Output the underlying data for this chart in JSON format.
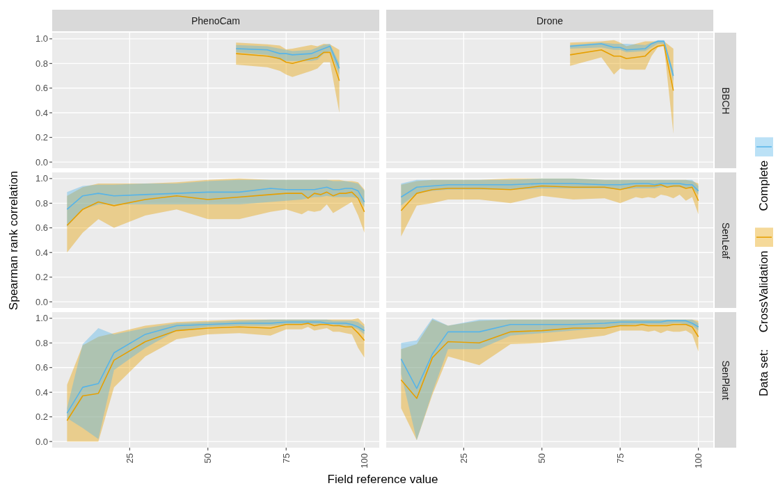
{
  "chart_data": [
    {
      "type": "line",
      "title": "PhenoCam",
      "legend": "right",
      "legend_title": "Data set:",
      "x": [
        59,
        69,
        73,
        75,
        77,
        83,
        85,
        87,
        89,
        92
      ],
      "series": [
        {
          "name": "CrossValidation",
          "color": "#e69f00",
          "values": [
            0.88,
            0.86,
            0.84,
            0.81,
            0.8,
            0.84,
            0.85,
            0.89,
            0.89,
            0.66
          ],
          "lower": [
            0.79,
            0.77,
            0.74,
            0.71,
            0.69,
            0.74,
            0.76,
            0.81,
            0.81,
            0.4
          ],
          "upper": [
            0.97,
            0.955,
            0.945,
            0.915,
            0.92,
            0.95,
            0.94,
            0.96,
            0.955,
            0.91
          ]
        },
        {
          "name": "Complete",
          "color": "#56b4e9",
          "values": [
            0.92,
            0.91,
            0.88,
            0.88,
            0.87,
            0.88,
            0.9,
            0.92,
            0.94,
            0.76
          ],
          "lower": [
            0.89,
            0.87,
            0.83,
            0.82,
            0.82,
            0.82,
            0.83,
            0.88,
            0.9,
            0.71
          ],
          "upper": [
            0.95,
            0.94,
            0.92,
            0.91,
            0.9,
            0.91,
            0.93,
            0.95,
            0.96,
            0.8
          ]
        }
      ],
      "xlim": [
        0.25,
        104.75
      ],
      "ylim": [
        -0.05,
        1.05
      ],
      "xticks": [
        25,
        50,
        75,
        100
      ],
      "yticks": [
        {
          "value": 0,
          "label": "0.0"
        },
        {
          "value": 0.2,
          "label": "0.2"
        },
        {
          "value": 0.4,
          "label": "0.4"
        },
        {
          "value": 0.6,
          "label": "0.6"
        },
        {
          "value": 0.8,
          "label": "0.8"
        },
        {
          "value": 1,
          "label": "1.0"
        }
      ],
      "grid": true,
      "tick_labels": "y"
    },
    {
      "type": "line",
      "title": "Drone",
      "y2label": "BBCH",
      "x": [
        59,
        69,
        73,
        75,
        77,
        83,
        85,
        87,
        89,
        92
      ],
      "series": [
        {
          "color": "#e69f00",
          "values": [
            0.87,
            0.91,
            0.86,
            0.86,
            0.84,
            0.86,
            0.91,
            0.94,
            0.95,
            0.58
          ],
          "lower": [
            0.78,
            0.85,
            0.71,
            0.76,
            0.75,
            0.75,
            0.86,
            0.93,
            0.94,
            0.23
          ],
          "upper": [
            0.97,
            0.98,
            0.99,
            0.97,
            0.94,
            0.98,
            0.98,
            0.98,
            0.98,
            0.92
          ]
        },
        {
          "color": "#56b4e9",
          "values": [
            0.94,
            0.96,
            0.93,
            0.93,
            0.91,
            0.92,
            0.96,
            0.98,
            0.98,
            0.7
          ],
          "lower": [
            0.92,
            0.93,
            0.91,
            0.91,
            0.89,
            0.9,
            0.93,
            0.96,
            0.96,
            0.66
          ],
          "upper": [
            0.95,
            0.97,
            0.96,
            0.96,
            0.96,
            0.95,
            0.97,
            0.99,
            0.99,
            0.74
          ]
        }
      ],
      "xlim": [
        0.25,
        104.75
      ],
      "ylim": [
        -0.05,
        1.05
      ],
      "xticks": [
        25,
        50,
        75,
        100
      ],
      "yticks": [
        0,
        0.2,
        0.4,
        0.6,
        0.8,
        1
      ],
      "grid": true,
      "tick_labels": false
    },
    {
      "type": "line",
      "ylabel": "Spearman rank correlation",
      "x": [
        5,
        10,
        15,
        20,
        30,
        40,
        50,
        60,
        70,
        75,
        80,
        82,
        84,
        86,
        88,
        90,
        92,
        94,
        96,
        98,
        100
      ],
      "series": [
        {
          "color": "#e69f00",
          "values": [
            0.62,
            0.75,
            0.81,
            0.78,
            0.83,
            0.86,
            0.83,
            0.85,
            0.87,
            0.88,
            0.88,
            0.84,
            0.88,
            0.87,
            0.89,
            0.86,
            0.88,
            0.88,
            0.89,
            0.84,
            0.73
          ],
          "lower": [
            0.4,
            0.56,
            0.67,
            0.6,
            0.7,
            0.75,
            0.67,
            0.67,
            0.73,
            0.75,
            0.71,
            0.74,
            0.73,
            0.74,
            0.79,
            0.72,
            0.75,
            0.78,
            0.81,
            0.7,
            0.56
          ],
          "upper": [
            0.86,
            0.93,
            0.96,
            0.96,
            0.96,
            0.97,
            0.99,
            1.0,
            0.99,
            0.99,
            0.99,
            0.99,
            0.99,
            0.99,
            0.99,
            0.99,
            0.99,
            0.98,
            0.98,
            0.97,
            0.91
          ]
        },
        {
          "color": "#56b4e9",
          "values": [
            0.75,
            0.86,
            0.88,
            0.86,
            0.87,
            0.88,
            0.89,
            0.89,
            0.92,
            0.91,
            0.91,
            0.91,
            0.91,
            0.92,
            0.93,
            0.91,
            0.91,
            0.92,
            0.92,
            0.9,
            0.81
          ],
          "lower": [
            0.61,
            0.75,
            0.79,
            0.79,
            0.79,
            0.79,
            0.79,
            0.79,
            0.81,
            0.82,
            0.83,
            0.84,
            0.85,
            0.85,
            0.86,
            0.85,
            0.85,
            0.85,
            0.85,
            0.84,
            0.77
          ],
          "upper": [
            0.89,
            0.94,
            0.95,
            0.95,
            0.96,
            0.96,
            0.98,
            0.99,
            0.99,
            0.99,
            0.99,
            0.99,
            0.99,
            0.99,
            0.99,
            0.98,
            0.98,
            0.98,
            0.97,
            0.96,
            0.9
          ]
        }
      ],
      "xlim": [
        0.25,
        104.75
      ],
      "ylim": [
        -0.05,
        1.05
      ],
      "xticks": [
        25,
        50,
        75,
        100
      ],
      "yticks": [
        {
          "value": 0,
          "label": "0.0"
        },
        {
          "value": 0.2,
          "label": "0.2"
        },
        {
          "value": 0.4,
          "label": "0.4"
        },
        {
          "value": 0.6,
          "label": "0.6"
        },
        {
          "value": 0.8,
          "label": "0.8"
        },
        {
          "value": 1,
          "label": "1.0"
        }
      ],
      "grid": true,
      "tick_labels": "y"
    },
    {
      "type": "line",
      "y2label": "SenLeaf",
      "x": [
        5,
        10,
        15,
        20,
        30,
        40,
        50,
        60,
        70,
        75,
        80,
        82,
        84,
        86,
        88,
        90,
        92,
        94,
        96,
        98,
        100
      ],
      "series": [
        {
          "color": "#e69f00",
          "values": [
            0.74,
            0.88,
            0.91,
            0.92,
            0.92,
            0.91,
            0.94,
            0.93,
            0.93,
            0.91,
            0.94,
            0.94,
            0.94,
            0.94,
            0.95,
            0.93,
            0.94,
            0.94,
            0.92,
            0.93,
            0.82
          ],
          "lower": [
            0.53,
            0.78,
            0.8,
            0.83,
            0.83,
            0.8,
            0.86,
            0.83,
            0.84,
            0.8,
            0.85,
            0.84,
            0.85,
            0.84,
            0.87,
            0.86,
            0.84,
            0.87,
            0.82,
            0.85,
            0.71
          ],
          "upper": [
            0.95,
            0.98,
            0.99,
            0.99,
            0.99,
            1.0,
            1.0,
            1.0,
            0.99,
            0.99,
            0.99,
            0.99,
            0.99,
            0.99,
            0.99,
            0.99,
            0.99,
            0.99,
            0.99,
            0.98,
            0.96
          ]
        },
        {
          "color": "#56b4e9",
          "values": [
            0.85,
            0.93,
            0.94,
            0.95,
            0.95,
            0.95,
            0.96,
            0.96,
            0.95,
            0.95,
            0.96,
            0.96,
            0.96,
            0.95,
            0.96,
            0.96,
            0.96,
            0.96,
            0.95,
            0.95,
            0.9
          ],
          "lower": [
            0.78,
            0.88,
            0.9,
            0.91,
            0.91,
            0.91,
            0.92,
            0.92,
            0.92,
            0.91,
            0.92,
            0.92,
            0.92,
            0.92,
            0.93,
            0.93,
            0.93,
            0.93,
            0.92,
            0.92,
            0.87
          ],
          "upper": [
            0.96,
            0.99,
            0.99,
            0.99,
            0.99,
            0.99,
            1.0,
            1.0,
            0.99,
            0.99,
            0.99,
            0.99,
            0.99,
            0.99,
            0.99,
            0.99,
            0.99,
            0.99,
            0.99,
            0.99,
            0.94
          ]
        }
      ],
      "xlim": [
        0.25,
        104.75
      ],
      "ylim": [
        -0.05,
        1.05
      ],
      "xticks": [
        25,
        50,
        75,
        100
      ],
      "yticks": [
        0,
        0.2,
        0.4,
        0.6,
        0.8,
        1
      ],
      "grid": true,
      "tick_labels": false
    },
    {
      "type": "line",
      "xlabel": "Field reference value",
      "x": [
        5,
        10,
        15,
        20,
        30,
        40,
        50,
        60,
        70,
        75,
        80,
        82,
        84,
        86,
        88,
        90,
        92,
        94,
        96,
        98,
        100
      ],
      "series": [
        {
          "color": "#e69f00",
          "values": [
            0.17,
            0.37,
            0.39,
            0.66,
            0.81,
            0.9,
            0.92,
            0.93,
            0.92,
            0.95,
            0.95,
            0.96,
            0.94,
            0.95,
            0.95,
            0.94,
            0.94,
            0.93,
            0.93,
            0.88,
            0.82
          ],
          "lower": [
            0,
            0,
            0,
            0.44,
            0.69,
            0.83,
            0.87,
            0.88,
            0.86,
            0.91,
            0.91,
            0.93,
            0.9,
            0.91,
            0.92,
            0.89,
            0.89,
            0.88,
            0.87,
            0.76,
            0.68
          ],
          "upper": [
            0.46,
            0.78,
            0.85,
            0.88,
            0.94,
            0.97,
            0.98,
            0.99,
            0.99,
            0.99,
            0.99,
            0.99,
            0.99,
            0.99,
            0.99,
            0.99,
            0.99,
            0.99,
            0.99,
            1.0,
            0.95
          ]
        },
        {
          "color": "#56b4e9",
          "values": [
            0.23,
            0.44,
            0.47,
            0.72,
            0.87,
            0.94,
            0.95,
            0.96,
            0.96,
            0.97,
            0.97,
            0.97,
            0.97,
            0.97,
            0.96,
            0.96,
            0.96,
            0.96,
            0.95,
            0.93,
            0.9
          ],
          "lower": [
            0.19,
            0.11,
            0.02,
            0.58,
            0.76,
            0.9,
            0.93,
            0.94,
            0.94,
            0.95,
            0.95,
            0.95,
            0.95,
            0.95,
            0.95,
            0.95,
            0.94,
            0.94,
            0.93,
            0.91,
            0.87
          ],
          "upper": [
            0.27,
            0.79,
            0.92,
            0.87,
            0.92,
            0.96,
            0.97,
            0.98,
            0.99,
            0.99,
            0.99,
            0.99,
            0.99,
            0.99,
            0.99,
            0.98,
            0.98,
            0.98,
            0.98,
            0.97,
            0.93
          ]
        }
      ],
      "xlim": [
        0.25,
        104.75
      ],
      "ylim": [
        -0.05,
        1.05
      ],
      "xticks": [
        25,
        50,
        75,
        100
      ],
      "yticks": [
        {
          "value": 0,
          "label": "0.0"
        },
        {
          "value": 0.2,
          "label": "0.2"
        },
        {
          "value": 0.4,
          "label": "0.4"
        },
        {
          "value": 0.6,
          "label": "0.6"
        },
        {
          "value": 0.8,
          "label": "0.8"
        },
        {
          "value": 1,
          "label": "1.0"
        }
      ],
      "grid": true
    },
    {
      "type": "line",
      "y2label": "SenPlant",
      "x": [
        5,
        10,
        15,
        20,
        30,
        40,
        50,
        60,
        70,
        75,
        80,
        82,
        84,
        86,
        88,
        90,
        92,
        94,
        96,
        98,
        100
      ],
      "series": [
        {
          "color": "#e69f00",
          "values": [
            0.5,
            0.35,
            0.68,
            0.81,
            0.8,
            0.89,
            0.9,
            0.92,
            0.92,
            0.94,
            0.94,
            0.95,
            0.94,
            0.94,
            0.94,
            0.94,
            0.95,
            0.95,
            0.95,
            0.93,
            0.85
          ],
          "lower": [
            0.27,
            0.01,
            0.38,
            0.69,
            0.62,
            0.79,
            0.8,
            0.83,
            0.86,
            0.9,
            0.9,
            0.9,
            0.89,
            0.9,
            0.88,
            0.9,
            0.89,
            0.89,
            0.9,
            0.87,
            0.73
          ],
          "upper": [
            0.75,
            0.79,
            0.99,
            0.94,
            0.98,
            0.99,
            0.99,
            0.99,
            0.99,
            0.99,
            0.99,
            0.99,
            0.99,
            0.99,
            0.99,
            0.99,
            0.99,
            0.99,
            0.99,
            0.99,
            0.98
          ]
        },
        {
          "color": "#56b4e9",
          "values": [
            0.67,
            0.43,
            0.71,
            0.89,
            0.89,
            0.95,
            0.95,
            0.95,
            0.96,
            0.97,
            0.97,
            0.97,
            0.97,
            0.97,
            0.97,
            0.98,
            0.98,
            0.98,
            0.98,
            0.96,
            0.93
          ],
          "lower": [
            0.55,
            0.01,
            0.4,
            0.75,
            0.75,
            0.86,
            0.88,
            0.9,
            0.92,
            0.94,
            0.95,
            0.95,
            0.95,
            0.95,
            0.95,
            0.95,
            0.96,
            0.96,
            0.95,
            0.94,
            0.9
          ],
          "upper": [
            0.8,
            0.82,
            1.0,
            0.94,
            0.99,
            0.99,
            0.99,
            0.99,
            0.99,
            0.99,
            0.99,
            0.99,
            0.99,
            0.99,
            0.99,
            0.99,
            0.99,
            0.99,
            0.99,
            0.99,
            0.96
          ]
        }
      ],
      "xlim": [
        0.25,
        104.75
      ],
      "ylim": [
        -0.05,
        1.05
      ],
      "xticks": [
        25,
        50,
        75,
        100
      ],
      "yticks": [
        0,
        0.2,
        0.4,
        0.6,
        0.8,
        1
      ],
      "grid": true,
      "tick_labels": "x"
    }
  ]
}
